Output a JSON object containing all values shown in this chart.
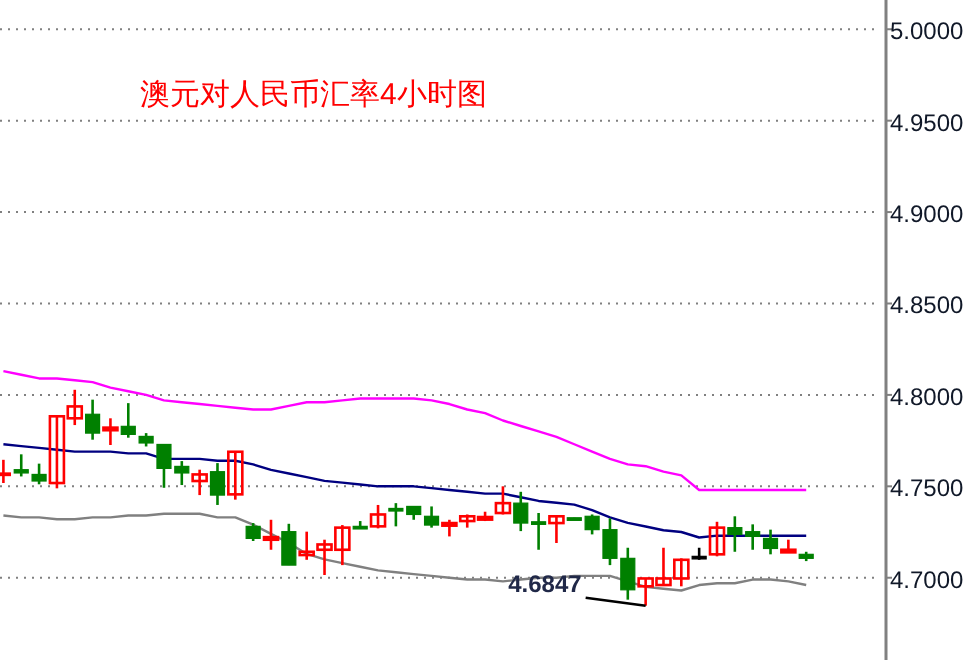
{
  "chart_data": {
    "type": "candlestick",
    "title": "澳元对人民币汇率4小时图",
    "categories": [
      null,
      null,
      null,
      null,
      null,
      null,
      null,
      null,
      null,
      null,
      null,
      null,
      null,
      null,
      null,
      null,
      null,
      null,
      null,
      null,
      null,
      null,
      null,
      null,
      null,
      null,
      null,
      null,
      null,
      null,
      null,
      null,
      null,
      null,
      null,
      null,
      null,
      null,
      null,
      null,
      null,
      null,
      null,
      null,
      null,
      null
    ],
    "ohlc": [
      [
        4.7573,
        4.7645,
        4.7518,
        4.7573
      ],
      [
        4.7591,
        4.7675,
        4.7554,
        4.7573
      ],
      [
        4.7565,
        4.7624,
        4.7511,
        4.7529
      ],
      [
        4.7518,
        4.7883,
        4.7489,
        4.7883
      ],
      [
        4.7872,
        4.8028,
        4.7835,
        4.7937
      ],
      [
        4.7894,
        4.7974,
        4.7755,
        4.7791
      ],
      [
        4.781,
        4.7872,
        4.7726,
        4.7821
      ],
      [
        4.7828,
        4.7955,
        4.7766,
        4.7784
      ],
      [
        4.7773,
        4.7791,
        4.7718,
        4.7737
      ],
      [
        4.7729,
        4.7729,
        4.7492,
        4.7598
      ],
      [
        4.7609,
        4.7638,
        4.7507,
        4.7573
      ],
      [
        4.7529,
        4.7591,
        4.7452,
        4.7565
      ],
      [
        4.758,
        4.7627,
        4.7398,
        4.7452
      ],
      [
        4.7456,
        4.7689,
        4.7427,
        4.7689
      ],
      [
        4.7281,
        4.7299,
        4.7201,
        4.7215
      ],
      [
        4.7215,
        4.7317,
        4.7153,
        4.7222
      ],
      [
        4.7252,
        4.7295,
        4.7069,
        4.7069
      ],
      [
        4.7124,
        4.7252,
        4.7098,
        4.7142
      ],
      [
        4.7153,
        4.7208,
        4.7015,
        4.7182
      ],
      [
        4.7153,
        4.7288,
        4.7069,
        4.7274
      ],
      [
        4.7281,
        4.731,
        4.727,
        4.727
      ],
      [
        4.7281,
        4.7398,
        4.727,
        4.7346
      ],
      [
        4.7379,
        4.7408,
        4.7281,
        4.7372
      ],
      [
        4.739,
        4.739,
        4.7317,
        4.7346
      ],
      [
        4.7336,
        4.739,
        4.7274,
        4.7288
      ],
      [
        4.7292,
        4.7317,
        4.7226,
        4.7299
      ],
      [
        4.731,
        4.7346,
        4.7274,
        4.7336
      ],
      [
        4.7321,
        4.7361,
        4.731,
        4.7332
      ],
      [
        4.7354,
        4.75,
        4.7346,
        4.7408
      ],
      [
        4.7408,
        4.747,
        4.7255,
        4.7299
      ],
      [
        4.7306,
        4.7354,
        4.7153,
        4.7295
      ],
      [
        4.7299,
        4.7336,
        4.719,
        4.7336
      ],
      [
        4.7328,
        4.7328,
        4.7317,
        4.7317
      ],
      [
        4.7336,
        4.7346,
        4.7237,
        4.7263
      ],
      [
        4.7263,
        4.7325,
        4.7069,
        4.7106
      ],
      [
        4.7106,
        4.7164,
        4.688,
        4.6934
      ],
      [
        4.6953,
        4.6996,
        4.6847,
        4.6996
      ],
      [
        4.696,
        4.7164,
        4.696,
        4.6996
      ],
      [
        4.6996,
        4.7106,
        4.6953,
        4.7098
      ],
      [
        4.7117,
        4.7164,
        4.7098,
        4.7117
      ],
      [
        4.7128,
        4.7306,
        4.7117,
        4.7274
      ],
      [
        4.7274,
        4.7336,
        4.7142,
        4.7237
      ],
      [
        4.7252,
        4.7292,
        4.7153,
        4.7226
      ],
      [
        4.7215,
        4.7263,
        4.7128,
        4.716
      ],
      [
        4.7146,
        4.7208,
        4.7146,
        4.7153
      ],
      [
        4.7128,
        4.7142,
        4.7091,
        4.7106
      ]
    ],
    "colors": [
      "#ff0000",
      "#008000",
      "#008000",
      "#ff0000",
      "#ff0000",
      "#008000",
      "#ff0000",
      "#008000",
      "#008000",
      "#008000",
      "#008000",
      "#ff0000",
      "#008000",
      "#ff0000",
      "#008000",
      "#ff0000",
      "#008000",
      "#ff0000",
      "#ff0000",
      "#ff0000",
      "#008000",
      "#ff0000",
      "#008000",
      "#008000",
      "#008000",
      "#ff0000",
      "#ff0000",
      "#ff0000",
      "#ff0000",
      "#008000",
      "#008000",
      "#ff0000",
      "#008000",
      "#008000",
      "#008000",
      "#008000",
      "#ff0000",
      "#ff0000",
      "#ff0000",
      "#000000",
      "#ff0000",
      "#008000",
      "#008000",
      "#008000",
      "#ff0000",
      "#008000"
    ],
    "series": [
      {
        "type": "line",
        "color": "#ff00ff",
        "values": [
          4.813,
          4.811,
          4.809,
          4.809,
          4.808,
          4.807,
          4.804,
          4.802,
          4.8,
          4.797,
          4.796,
          4.795,
          4.794,
          4.793,
          4.792,
          4.792,
          4.794,
          4.796,
          4.796,
          4.797,
          4.798,
          4.798,
          4.798,
          4.798,
          4.797,
          4.795,
          4.792,
          4.79,
          4.786,
          4.783,
          4.78,
          4.777,
          4.773,
          4.769,
          4.765,
          4.762,
          4.761,
          4.758,
          4.756,
          4.748,
          4.748,
          4.748,
          4.748,
          4.748,
          4.748,
          4.748
        ]
      },
      {
        "type": "line",
        "color": "#000080",
        "values": [
          4.773,
          4.772,
          4.771,
          4.77,
          4.769,
          4.769,
          4.769,
          4.768,
          4.768,
          4.765,
          4.765,
          4.765,
          4.764,
          4.764,
          4.762,
          4.759,
          4.757,
          4.755,
          4.753,
          4.752,
          4.751,
          4.75,
          4.75,
          4.75,
          4.749,
          4.748,
          4.747,
          4.746,
          4.746,
          4.744,
          4.742,
          4.741,
          4.74,
          4.737,
          4.733,
          4.73,
          4.728,
          4.726,
          4.725,
          4.722,
          4.723,
          4.723,
          4.723,
          4.723,
          4.723,
          4.723
        ]
      },
      {
        "type": "line",
        "color": "#808080",
        "values": [
          4.734,
          4.733,
          4.733,
          4.732,
          4.732,
          4.733,
          4.733,
          4.734,
          4.734,
          4.735,
          4.735,
          4.735,
          4.733,
          4.733,
          4.729,
          4.724,
          4.719,
          4.713,
          4.71,
          4.708,
          4.706,
          4.704,
          4.703,
          4.702,
          4.701,
          4.7,
          4.699,
          4.699,
          4.698,
          4.699,
          4.7,
          4.7,
          4.701,
          4.701,
          4.701,
          4.698,
          4.695,
          4.694,
          4.693,
          4.696,
          4.697,
          4.697,
          4.699,
          4.699,
          4.698,
          4.696
        ]
      }
    ],
    "annotations": [
      "4.6847"
    ],
    "ylim": [
      4.655,
      5.016
    ],
    "yticks": [
      {
        "value": 4.7,
        "label": "4.7000"
      },
      {
        "value": 4.75,
        "label": "4.7500"
      },
      {
        "value": 4.8,
        "label": "4.8000"
      },
      {
        "value": 4.85,
        "label": "4.8500"
      },
      {
        "value": 4.9,
        "label": "4.9000"
      },
      {
        "value": 4.95,
        "label": "4.9500"
      },
      {
        "value": 5.0,
        "label": "5.0000"
      }
    ],
    "grid": "y",
    "tick_labels": "y"
  }
}
